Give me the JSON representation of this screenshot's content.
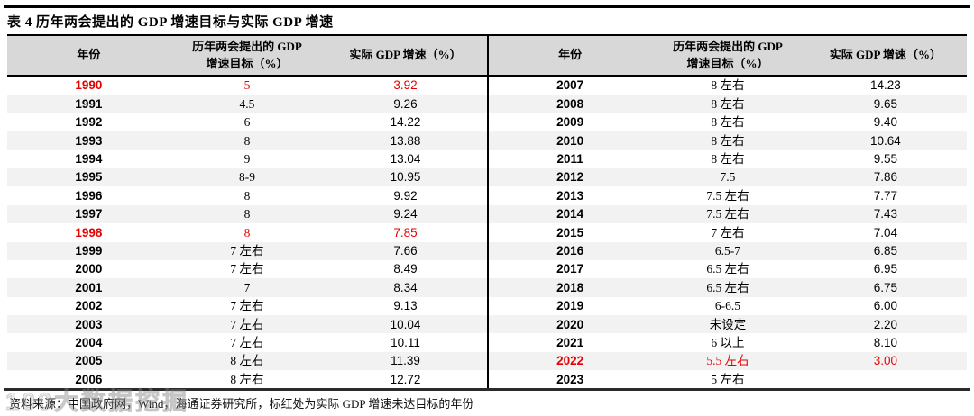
{
  "title": "表 4 历年两会提出的 GDP 增速目标与实际 GDP 增速",
  "columns": {
    "year": "年份",
    "target_line1": "历年两会提出的 GDP",
    "target_line2": "增速目标（%）",
    "actual": "实际 GDP 增速（%）"
  },
  "left_rows": [
    {
      "year": "1990",
      "target": "5",
      "actual": "3.92",
      "red": true
    },
    {
      "year": "1991",
      "target": "4.5",
      "actual": "9.26",
      "red": false
    },
    {
      "year": "1992",
      "target": "6",
      "actual": "14.22",
      "red": false
    },
    {
      "year": "1993",
      "target": "8",
      "actual": "13.88",
      "red": false
    },
    {
      "year": "1994",
      "target": "9",
      "actual": "13.04",
      "red": false
    },
    {
      "year": "1995",
      "target": "8-9",
      "actual": "10.95",
      "red": false
    },
    {
      "year": "1996",
      "target": "8",
      "actual": "9.92",
      "red": false
    },
    {
      "year": "1997",
      "target": "8",
      "actual": "9.24",
      "red": false
    },
    {
      "year": "1998",
      "target": "8",
      "actual": "7.85",
      "red": true
    },
    {
      "year": "1999",
      "target": "7 左右",
      "actual": "7.66",
      "red": false
    },
    {
      "year": "2000",
      "target": "7 左右",
      "actual": "8.49",
      "red": false
    },
    {
      "year": "2001",
      "target": "7",
      "actual": "8.34",
      "red": false
    },
    {
      "year": "2002",
      "target": "7 左右",
      "actual": "9.13",
      "red": false
    },
    {
      "year": "2003",
      "target": "7 左右",
      "actual": "10.04",
      "red": false
    },
    {
      "year": "2004",
      "target": "7 左右",
      "actual": "10.11",
      "red": false
    },
    {
      "year": "2005",
      "target": "8 左右",
      "actual": "11.39",
      "red": false
    },
    {
      "year": "2006",
      "target": "8 左右",
      "actual": "12.72",
      "red": false
    }
  ],
  "right_rows": [
    {
      "year": "2007",
      "target": "8 左右",
      "actual": "14.23",
      "red": false
    },
    {
      "year": "2008",
      "target": "8 左右",
      "actual": "9.65",
      "red": false
    },
    {
      "year": "2009",
      "target": "8 左右",
      "actual": "9.40",
      "red": false
    },
    {
      "year": "2010",
      "target": "8 左右",
      "actual": "10.64",
      "red": false
    },
    {
      "year": "2011",
      "target": "8 左右",
      "actual": "9.55",
      "red": false
    },
    {
      "year": "2012",
      "target": "7.5",
      "actual": "7.86",
      "red": false
    },
    {
      "year": "2013",
      "target": "7.5 左右",
      "actual": "7.77",
      "red": false
    },
    {
      "year": "2014",
      "target": "7.5 左右",
      "actual": "7.43",
      "red": false
    },
    {
      "year": "2015",
      "target": "7 左右",
      "actual": "7.04",
      "red": false
    },
    {
      "year": "2016",
      "target": "6.5-7",
      "actual": "6.85",
      "red": false
    },
    {
      "year": "2017",
      "target": "6.5 左右",
      "actual": "6.95",
      "red": false
    },
    {
      "year": "2018",
      "target": "6.5 左右",
      "actual": "6.75",
      "red": false
    },
    {
      "year": "2019",
      "target": "6-6.5",
      "actual": "6.00",
      "red": false
    },
    {
      "year": "2020",
      "target": "未设定",
      "actual": "2.20",
      "red": false
    },
    {
      "year": "2021",
      "target": "6 以上",
      "actual": "8.10",
      "red": false
    },
    {
      "year": "2022",
      "target": "5.5 左右",
      "actual": "3.00",
      "red": true
    },
    {
      "year": "2023",
      "target": "5 左右",
      "actual": "",
      "red": false
    }
  ],
  "footer": "资料来源：中国政府网，Wind，海通证券研究所，标红处为实际 GDP 增速未达目标的年份",
  "watermark": "100大数据挖掘",
  "colors": {
    "highlight_red": "#e60000",
    "header_bg": "#d8d8d8",
    "row_alt_bg": "#f2f2f2",
    "rule_black": "#000000"
  }
}
